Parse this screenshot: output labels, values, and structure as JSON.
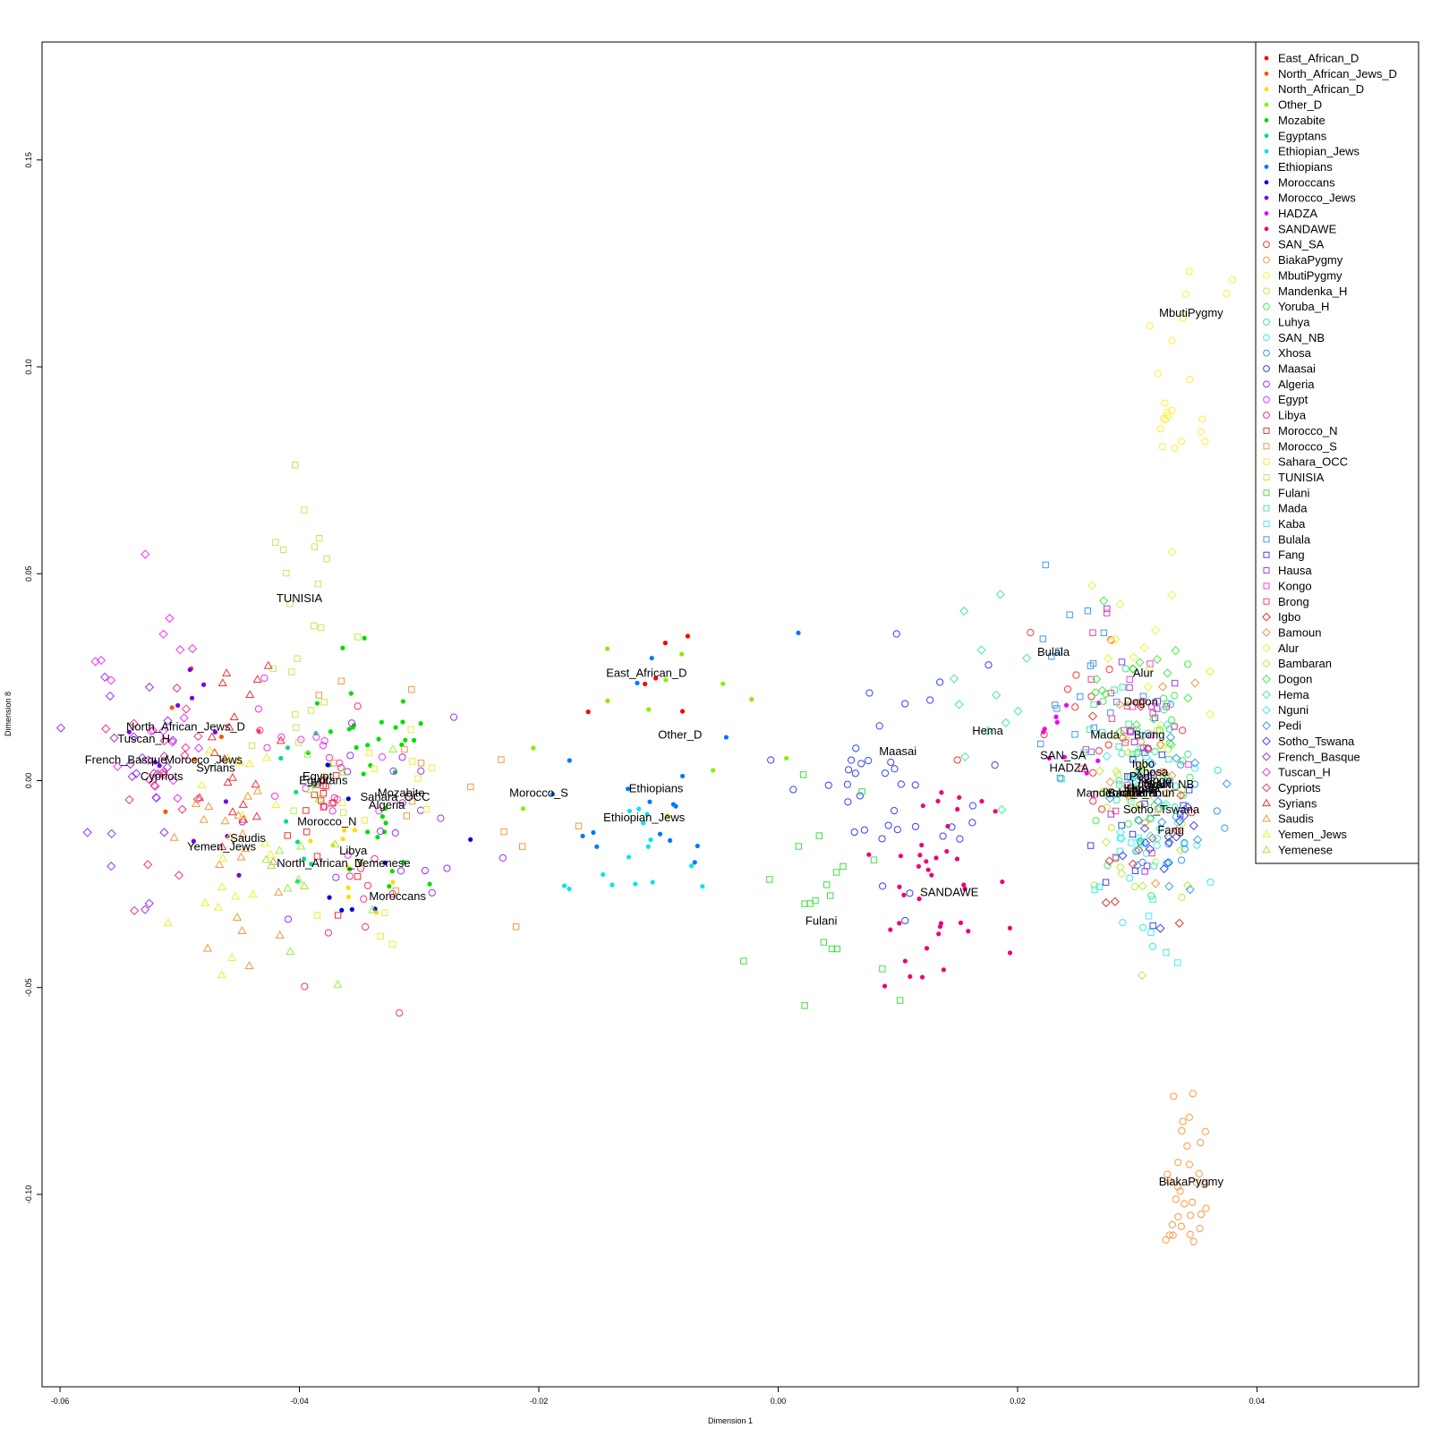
{
  "chart_data": {
    "type": "scatter",
    "xlabel": "Dimension 1",
    "ylabel": "Dimension 8",
    "xlim": [
      -0.0615,
      0.0535
    ],
    "ylim": [
      -0.1465,
      0.1785
    ],
    "x_ticks": [
      -0.06,
      -0.04,
      -0.02,
      0.0,
      0.02,
      0.04
    ],
    "x_tick_labels": [
      "-0.06",
      "-0.04",
      "-0.02",
      "0.00",
      "0.02",
      "0.04"
    ],
    "y_ticks": [
      -0.1,
      -0.05,
      0.0,
      0.05,
      0.1,
      0.15
    ],
    "y_tick_labels": [
      "-0.10",
      "-0.05",
      "0.00",
      "0.05",
      "0.10",
      "0.15"
    ],
    "grid": false,
    "legend_position": "top-right",
    "series": [
      {
        "name": "East_African_D",
        "color": "#ff0000",
        "shape": "dot",
        "cx": -0.011,
        "cy": 0.022,
        "sx": 0.004,
        "sy": 0.015,
        "n": 6
      },
      {
        "name": "North_African_Jews_D",
        "color": "#ff5500",
        "shape": "dot",
        "cx": -0.048,
        "cy": 0.01,
        "sx": 0.003,
        "sy": 0.015,
        "n": 6
      },
      {
        "name": "North_African_D",
        "color": "#ffdd00",
        "shape": "dot",
        "cx": -0.038,
        "cy": -0.018,
        "sx": 0.004,
        "sy": 0.015,
        "n": 10
      },
      {
        "name": "Other_D",
        "color": "#88ee00",
        "shape": "dot",
        "cx": -0.012,
        "cy": 0.01,
        "sx": 0.008,
        "sy": 0.02,
        "n": 12
      },
      {
        "name": "Mozabite",
        "color": "#00dd00",
        "shape": "dot",
        "cx": -0.033,
        "cy": 0.0,
        "sx": 0.004,
        "sy": 0.02,
        "n": 35
      },
      {
        "name": "Egyptans",
        "color": "#00dd88",
        "shape": "dot",
        "cx": -0.038,
        "cy": -0.005,
        "sx": 0.004,
        "sy": 0.02,
        "n": 10
      },
      {
        "name": "Ethiopian_Jews",
        "color": "#00e5ee",
        "shape": "dot",
        "cx": -0.011,
        "cy": -0.018,
        "sx": 0.004,
        "sy": 0.015,
        "n": 15
      },
      {
        "name": "Ethiopians",
        "color": "#0077ff",
        "shape": "dot",
        "cx": -0.01,
        "cy": -0.002,
        "sx": 0.006,
        "sy": 0.02,
        "n": 18
      },
      {
        "name": "Moroccans",
        "color": "#0000dd",
        "shape": "dot",
        "cx": -0.032,
        "cy": -0.02,
        "sx": 0.006,
        "sy": 0.02,
        "n": 8
      },
      {
        "name": "Morocco_Jews",
        "color": "#7700ee",
        "shape": "dot",
        "cx": -0.048,
        "cy": 0.005,
        "sx": 0.004,
        "sy": 0.015,
        "n": 12
      },
      {
        "name": "HADZA",
        "color": "#ee00ee",
        "shape": "dot",
        "cx": 0.024,
        "cy": 0.008,
        "sx": 0.002,
        "sy": 0.01,
        "n": 10
      },
      {
        "name": "SANDAWE",
        "color": "#ee0077",
        "shape": "dot",
        "cx": 0.014,
        "cy": -0.028,
        "sx": 0.004,
        "sy": 0.015,
        "n": 40
      },
      {
        "name": "SAN_SA",
        "color": "#ff3333",
        "shape": "circle",
        "cx": 0.026,
        "cy": 0.01,
        "sx": 0.006,
        "sy": 0.02,
        "n": 20
      },
      {
        "name": "BiakaPygmy",
        "color": "#ff9944",
        "shape": "circle",
        "cx": 0.034,
        "cy": -0.098,
        "sx": 0.0015,
        "sy": 0.015,
        "n": 32
      },
      {
        "name": "MbutiPygmy",
        "color": "#ffee33",
        "shape": "circle",
        "cx": 0.034,
        "cy": 0.1,
        "sx": 0.002,
        "sy": 0.02,
        "n": 22
      },
      {
        "name": "Mandenka_H",
        "color": "#bbee33",
        "shape": "circle",
        "cx": 0.03,
        "cy": -0.005,
        "sx": 0.003,
        "sy": 0.02,
        "n": 25
      },
      {
        "name": "Yoruba_H",
        "color": "#44ee44",
        "shape": "circle",
        "cx": 0.031,
        "cy": 0.0,
        "sx": 0.003,
        "sy": 0.02,
        "n": 25
      },
      {
        "name": "Luhya",
        "color": "#33ee99",
        "shape": "circle",
        "cx": 0.031,
        "cy": 0.002,
        "sx": 0.003,
        "sy": 0.02,
        "n": 20
      },
      {
        "name": "SAN_NB",
        "color": "#33eeee",
        "shape": "circle",
        "cx": 0.032,
        "cy": -0.01,
        "sx": 0.003,
        "sy": 0.02,
        "n": 20
      },
      {
        "name": "Xhosa",
        "color": "#3399ee",
        "shape": "circle",
        "cx": 0.032,
        "cy": -0.005,
        "sx": 0.003,
        "sy": 0.015,
        "n": 15
      },
      {
        "name": "Maasai",
        "color": "#3344ee",
        "shape": "circle",
        "cx": 0.01,
        "cy": 0.0,
        "sx": 0.005,
        "sy": 0.02,
        "n": 40
      },
      {
        "name": "Algeria",
        "color": "#9933ee",
        "shape": "circle",
        "cx": -0.033,
        "cy": -0.005,
        "sx": 0.006,
        "sy": 0.02,
        "n": 20
      },
      {
        "name": "Egypt",
        "color": "#ee33ee",
        "shape": "circle",
        "cx": -0.038,
        "cy": 0.002,
        "sx": 0.005,
        "sy": 0.02,
        "n": 20
      },
      {
        "name": "Libya",
        "color": "#ee3388",
        "shape": "circle",
        "cx": -0.036,
        "cy": -0.018,
        "sx": 0.005,
        "sy": 0.02,
        "n": 15
      },
      {
        "name": "Morocco_N",
        "color": "#ee3333",
        "shape": "square",
        "cx": -0.037,
        "cy": -0.01,
        "sx": 0.004,
        "sy": 0.018,
        "n": 15
      },
      {
        "name": "Morocco_S",
        "color": "#ee9944",
        "shape": "square",
        "cx": -0.028,
        "cy": -0.005,
        "sx": 0.01,
        "sy": 0.02,
        "n": 15
      },
      {
        "name": "Sahara_OCC",
        "color": "#eeee33",
        "shape": "square",
        "cx": -0.034,
        "cy": -0.01,
        "sx": 0.005,
        "sy": 0.02,
        "n": 15
      },
      {
        "name": "TUNISIA",
        "color": "#bbee55",
        "shape": "square",
        "cx": -0.04,
        "cy": 0.04,
        "sx": 0.003,
        "sy": 0.03,
        "n": 25
      },
      {
        "name": "Fulani",
        "color": "#44dd44",
        "shape": "square",
        "cx": 0.003,
        "cy": -0.028,
        "sx": 0.005,
        "sy": 0.02,
        "n": 20
      },
      {
        "name": "Mada",
        "color": "#44ee99",
        "shape": "square",
        "cx": 0.028,
        "cy": 0.01,
        "sx": 0.003,
        "sy": 0.02,
        "n": 15
      },
      {
        "name": "Kaba",
        "color": "#44eeee",
        "shape": "square",
        "cx": 0.03,
        "cy": -0.02,
        "sx": 0.003,
        "sy": 0.02,
        "n": 15
      },
      {
        "name": "Bulala",
        "color": "#4499ee",
        "shape": "square",
        "cx": 0.025,
        "cy": 0.025,
        "sx": 0.003,
        "sy": 0.02,
        "n": 20
      },
      {
        "name": "Fang",
        "color": "#4444ee",
        "shape": "square",
        "cx": 0.03,
        "cy": -0.015,
        "sx": 0.003,
        "sy": 0.02,
        "n": 15
      },
      {
        "name": "Hausa",
        "color": "#9944ee",
        "shape": "square",
        "cx": 0.03,
        "cy": 0.005,
        "sx": 0.003,
        "sy": 0.02,
        "n": 15
      },
      {
        "name": "Kongo",
        "color": "#ee44ee",
        "shape": "square",
        "cx": 0.03,
        "cy": 0.01,
        "sx": 0.003,
        "sy": 0.02,
        "n": 15
      },
      {
        "name": "Brong",
        "color": "#ee4499",
        "shape": "square",
        "cx": 0.029,
        "cy": 0.012,
        "sx": 0.003,
        "sy": 0.02,
        "n": 15
      },
      {
        "name": "Igbo",
        "color": "#ee3333",
        "shape": "diamond",
        "cx": 0.03,
        "cy": -0.005,
        "sx": 0.003,
        "sy": 0.02,
        "n": 15
      },
      {
        "name": "Bamoun",
        "color": "#ee9944",
        "shape": "diamond",
        "cx": 0.031,
        "cy": 0.0,
        "sx": 0.003,
        "sy": 0.02,
        "n": 15
      },
      {
        "name": "Alur",
        "color": "#eeee44",
        "shape": "diamond",
        "cx": 0.03,
        "cy": 0.025,
        "sx": 0.003,
        "sy": 0.02,
        "n": 15
      },
      {
        "name": "Bambaran",
        "color": "#bbee44",
        "shape": "diamond",
        "cx": 0.03,
        "cy": -0.005,
        "sx": 0.003,
        "sy": 0.02,
        "n": 15
      },
      {
        "name": "Dogon",
        "color": "#44ee44",
        "shape": "diamond",
        "cx": 0.03,
        "cy": 0.02,
        "sx": 0.003,
        "sy": 0.02,
        "n": 15
      },
      {
        "name": "Hema",
        "color": "#44ee99",
        "shape": "diamond",
        "cx": 0.017,
        "cy": 0.02,
        "sx": 0.004,
        "sy": 0.02,
        "n": 12
      },
      {
        "name": "Nguni",
        "color": "#44eeee",
        "shape": "diamond",
        "cx": 0.031,
        "cy": -0.005,
        "sx": 0.003,
        "sy": 0.015,
        "n": 15
      },
      {
        "name": "Pedi",
        "color": "#4499ee",
        "shape": "diamond",
        "cx": 0.032,
        "cy": -0.005,
        "sx": 0.003,
        "sy": 0.015,
        "n": 15
      },
      {
        "name": "Sotho_Tswana",
        "color": "#4444ee",
        "shape": "diamond",
        "cx": 0.032,
        "cy": -0.01,
        "sx": 0.003,
        "sy": 0.02,
        "n": 15
      },
      {
        "name": "French_Basque",
        "color": "#9933ee",
        "shape": "diamond",
        "cx": -0.054,
        "cy": -0.005,
        "sx": 0.003,
        "sy": 0.025,
        "n": 22
      },
      {
        "name": "Tuscan_H",
        "color": "#ee33ee",
        "shape": "diamond",
        "cx": -0.053,
        "cy": 0.015,
        "sx": 0.003,
        "sy": 0.025,
        "n": 20
      },
      {
        "name": "Cypriots",
        "color": "#ee3388",
        "shape": "diamond",
        "cx": -0.051,
        "cy": 0.0,
        "sx": 0.003,
        "sy": 0.02,
        "n": 20
      },
      {
        "name": "Syrians",
        "color": "#ee3333",
        "shape": "triangle",
        "cx": -0.046,
        "cy": 0.005,
        "sx": 0.003,
        "sy": 0.02,
        "n": 20
      },
      {
        "name": "Saudis",
        "color": "#ee9944",
        "shape": "triangle",
        "cx": -0.045,
        "cy": -0.02,
        "sx": 0.003,
        "sy": 0.02,
        "n": 20
      },
      {
        "name": "Yemen_Jews",
        "color": "#eeee33",
        "shape": "triangle",
        "cx": -0.046,
        "cy": -0.015,
        "sx": 0.003,
        "sy": 0.02,
        "n": 20
      },
      {
        "name": "Yemenese",
        "color": "#99ee44",
        "shape": "triangle",
        "cx": -0.038,
        "cy": -0.02,
        "sx": 0.004,
        "sy": 0.02,
        "n": 15
      }
    ],
    "point_labels": [
      {
        "text": "MbutiPygmy",
        "x": 0.0345,
        "y": 0.113
      },
      {
        "text": "TUNISIA",
        "x": -0.04,
        "y": 0.044
      },
      {
        "text": "East_African_D",
        "x": -0.011,
        "y": 0.026
      },
      {
        "text": "Other_D",
        "x": -0.0082,
        "y": 0.011
      },
      {
        "text": "North_African_Jews_D",
        "x": -0.0495,
        "y": 0.013
      },
      {
        "text": "Tuscan_H",
        "x": -0.053,
        "y": 0.01
      },
      {
        "text": "French_Basque",
        "x": -0.0545,
        "y": 0.005
      },
      {
        "text": "Morocco_Jews",
        "x": -0.048,
        "y": 0.005
      },
      {
        "text": "Syrians",
        "x": -0.047,
        "y": 0.003
      },
      {
        "text": "Cypriots",
        "x": -0.0515,
        "y": 0.001
      },
      {
        "text": "Egypt",
        "x": -0.0385,
        "y": 0.001
      },
      {
        "text": "Egyptans",
        "x": -0.038,
        "y": 0.0
      },
      {
        "text": "Mozabite",
        "x": -0.0315,
        "y": -0.003
      },
      {
        "text": "Sahara_OCC",
        "x": -0.032,
        "y": -0.004
      },
      {
        "text": "Algeria",
        "x": -0.0327,
        "y": -0.006
      },
      {
        "text": "Morocco_N",
        "x": -0.0377,
        "y": -0.01
      },
      {
        "text": "Saudis",
        "x": -0.0443,
        "y": -0.014
      },
      {
        "text": "Yemen_Jews",
        "x": -0.0465,
        "y": -0.016
      },
      {
        "text": "Libya",
        "x": -0.0355,
        "y": -0.017
      },
      {
        "text": "North_African_D",
        "x": -0.0383,
        "y": -0.02
      },
      {
        "text": "Yemenese",
        "x": -0.033,
        "y": -0.02
      },
      {
        "text": "Moroccans",
        "x": -0.0318,
        "y": -0.028
      },
      {
        "text": "Morocco_S",
        "x": -0.02,
        "y": -0.003
      },
      {
        "text": "Ethiopians",
        "x": -0.0102,
        "y": -0.002
      },
      {
        "text": "Ethiopian_Jews",
        "x": -0.0112,
        "y": -0.009
      },
      {
        "text": "Fulani",
        "x": 0.0036,
        "y": -0.034
      },
      {
        "text": "SANDAWE",
        "x": 0.0143,
        "y": -0.027
      },
      {
        "text": "Maasai",
        "x": 0.01,
        "y": 0.007
      },
      {
        "text": "Hema",
        "x": 0.0175,
        "y": 0.012
      },
      {
        "text": "Bulala",
        "x": 0.023,
        "y": 0.031
      },
      {
        "text": "SAN_SA",
        "x": 0.0238,
        "y": 0.006
      },
      {
        "text": "HADZA",
        "x": 0.0243,
        "y": 0.003
      },
      {
        "text": "Alur",
        "x": 0.0305,
        "y": 0.026
      },
      {
        "text": "Dogon",
        "x": 0.0303,
        "y": 0.019
      },
      {
        "text": "Mada",
        "x": 0.0273,
        "y": 0.011
      },
      {
        "text": "Brong",
        "x": 0.031,
        "y": 0.011
      },
      {
        "text": "Igbo",
        "x": 0.0305,
        "y": 0.004
      },
      {
        "text": "Xhosa",
        "x": 0.0312,
        "y": 0.002
      },
      {
        "text": "Pedi",
        "x": 0.0303,
        "y": 0.001
      },
      {
        "text": "Kongo",
        "x": 0.0315,
        "y": 0.0
      },
      {
        "text": "Nguni",
        "x": 0.0318,
        "y": -0.001
      },
      {
        "text": "Luhya",
        "x": 0.0308,
        "y": -0.001
      },
      {
        "text": "SAN_NB",
        "x": 0.0328,
        "y": -0.001
      },
      {
        "text": "Hausa",
        "x": 0.0305,
        "y": -0.002
      },
      {
        "text": "Mandenka_H",
        "x": 0.0278,
        "y": -0.003
      },
      {
        "text": "Yoruba_H",
        "x": 0.0295,
        "y": -0.003
      },
      {
        "text": "Bambaran",
        "x": 0.0298,
        "y": -0.003
      },
      {
        "text": "Bamoun",
        "x": 0.0313,
        "y": -0.003
      },
      {
        "text": "Sotho_Tswana",
        "x": 0.032,
        "y": -0.007
      },
      {
        "text": "Fang",
        "x": 0.0328,
        "y": -0.012
      },
      {
        "text": "Kaba",
        "x": 0.03,
        "y": -0.002
      },
      {
        "text": "BiakaPygmy",
        "x": 0.0345,
        "y": -0.097
      }
    ]
  }
}
